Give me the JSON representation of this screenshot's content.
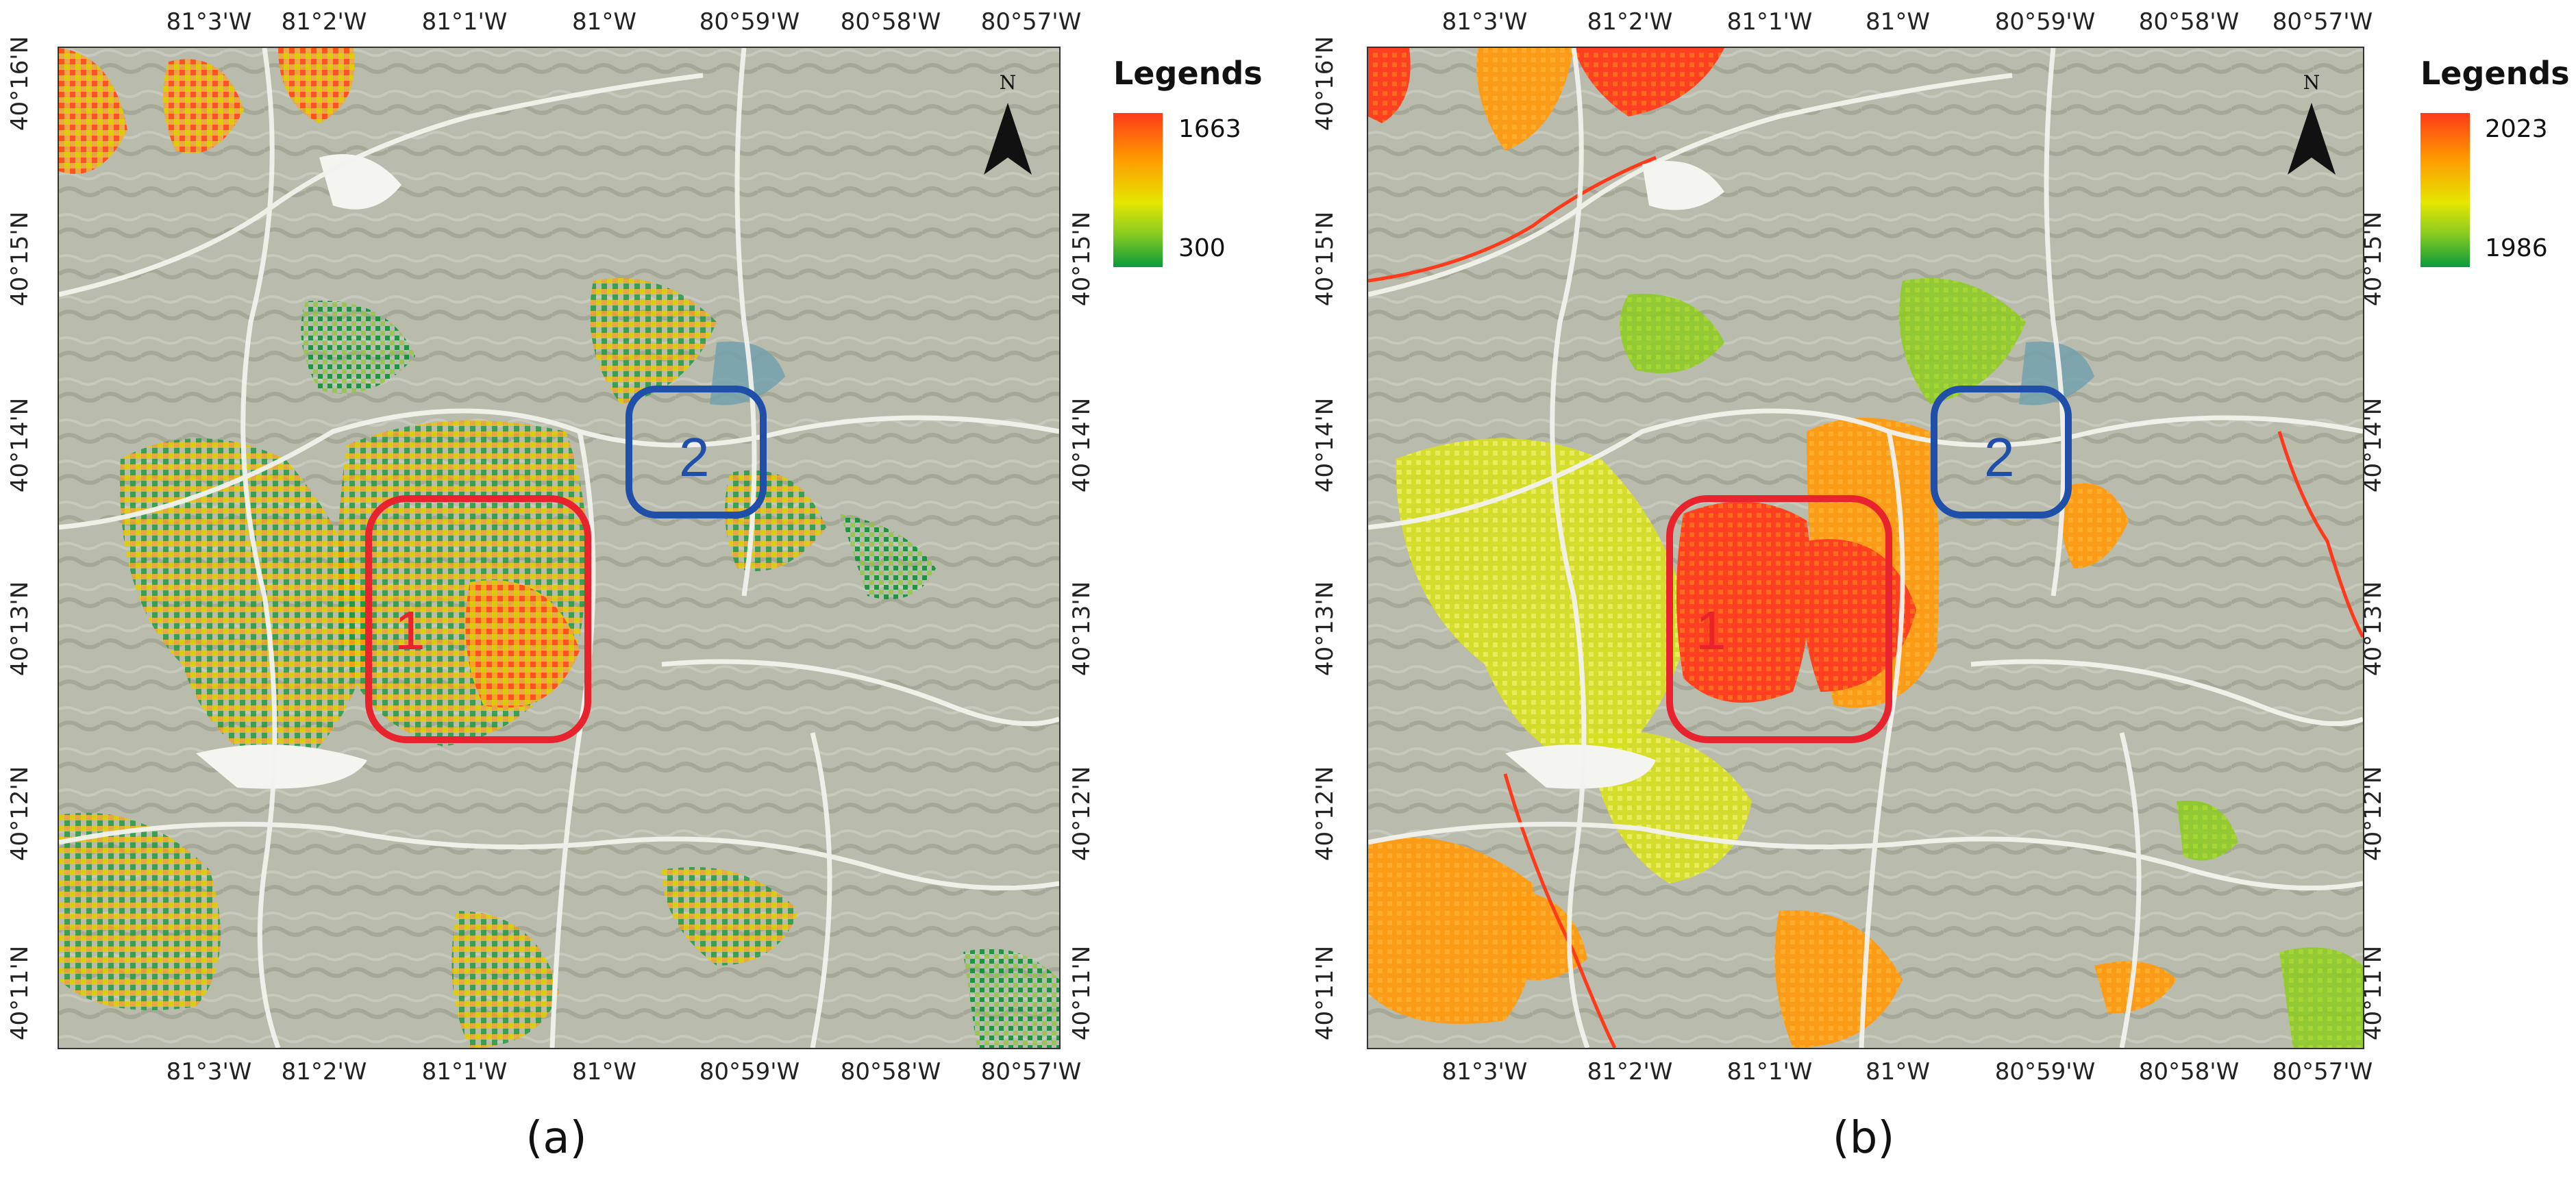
{
  "panels": [
    {
      "caption": "(a)",
      "legend": {
        "title": "Legends",
        "max": "1663",
        "min": "300",
        "colors": [
          "#ff3a1a",
          "#ff9a00",
          "#e6e600",
          "#8ccc20",
          "#0a9a3a"
        ]
      },
      "north_label": "N",
      "x_ticks": [
        "81°3'W",
        "81°2'W",
        "81°1'W",
        "81°W",
        "80°59'W",
        "80°58'W",
        "80°57'W"
      ],
      "y_ticks": [
        "40°16'N",
        "40°15'N",
        "40°14'N",
        "40°13'N",
        "40°12'N",
        "40°11'N"
      ],
      "regions": [
        {
          "label": "1",
          "color": "#e8232e"
        },
        {
          "label": "2",
          "color": "#1f4fa8"
        }
      ]
    },
    {
      "caption": "(b)",
      "legend": {
        "title": "Legends",
        "max": "2023",
        "min": "1986",
        "colors": [
          "#ff3a1a",
          "#ff9a00",
          "#e6e600",
          "#8ccc20",
          "#0a9a3a"
        ]
      },
      "north_label": "N",
      "x_ticks": [
        "81°3'W",
        "81°2'W",
        "81°1'W",
        "81°W",
        "80°59'W",
        "80°58'W",
        "80°57'W"
      ],
      "y_ticks": [
        "40°16'N",
        "40°15'N",
        "40°14'N",
        "40°13'N",
        "40°12'N",
        "40°11'N"
      ],
      "regions": [
        {
          "label": "1",
          "color": "#e8232e"
        },
        {
          "label": "2",
          "color": "#1f4fa8"
        }
      ]
    }
  ]
}
